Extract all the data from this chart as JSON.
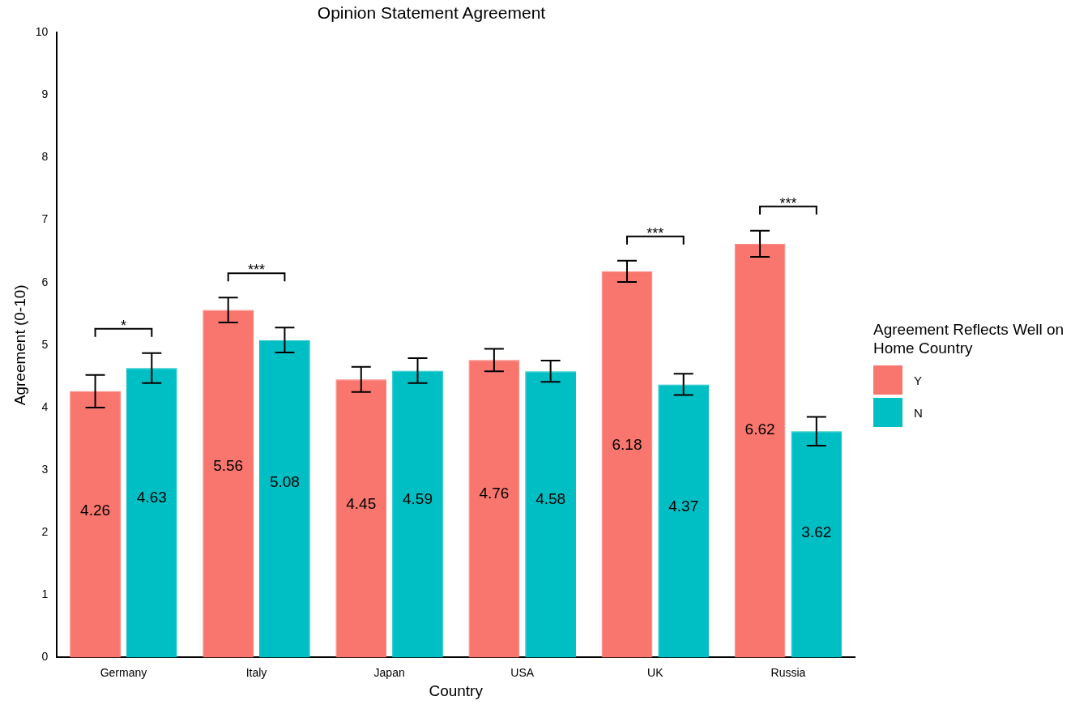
{
  "chart_data": {
    "type": "bar",
    "title": "Opinion Statement Agreement",
    "xlabel": "Country",
    "ylabel": "Agreement (0-10)",
    "legend_title": "Agreement Reflects Well on Home Country",
    "categories": [
      "Germany",
      "Italy",
      "Japan",
      "USA",
      "UK",
      "Russia"
    ],
    "series": [
      {
        "name": "Y",
        "color": "#f8766d",
        "values": [
          4.26,
          5.56,
          4.45,
          4.76,
          6.18,
          6.62
        ],
        "errors": [
          0.26,
          0.2,
          0.2,
          0.18,
          0.17,
          0.21
        ]
      },
      {
        "name": "N",
        "color": "#00bfc4",
        "values": [
          4.63,
          5.08,
          4.59,
          4.58,
          4.37,
          3.62
        ],
        "errors": [
          0.24,
          0.2,
          0.2,
          0.17,
          0.17,
          0.23
        ]
      }
    ],
    "ylim": [
      0,
      10
    ],
    "yticks": [
      0,
      1,
      2,
      3,
      4,
      5,
      6,
      7,
      8,
      9,
      10
    ],
    "grid": false,
    "legend": "right",
    "data_labels": true,
    "annotations": [
      "*",
      "***",
      "***",
      "***"
    ]
  }
}
